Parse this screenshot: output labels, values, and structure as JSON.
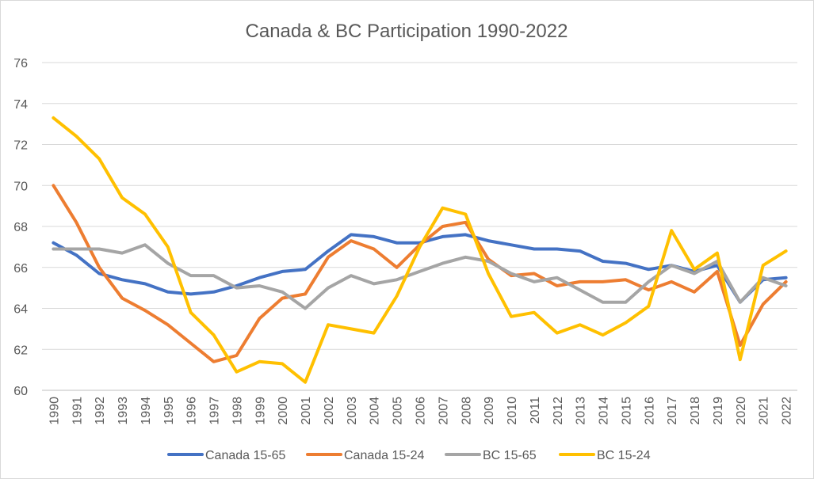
{
  "chart_data": {
    "type": "line",
    "title": "Canada & BC Participation 1990-2022",
    "x": [
      "1990",
      "1991",
      "1992",
      "1993",
      "1994",
      "1995",
      "1996",
      "1997",
      "1998",
      "1999",
      "2000",
      "2001",
      "2002",
      "2003",
      "2004",
      "2005",
      "2006",
      "2007",
      "2008",
      "2009",
      "2010",
      "2011",
      "2012",
      "2013",
      "2014",
      "2015",
      "2016",
      "2017",
      "2018",
      "2019",
      "2020",
      "2021",
      "2022"
    ],
    "ylim": [
      60,
      76
    ],
    "yticks": [
      "60",
      "62",
      "64",
      "66",
      "68",
      "70",
      "72",
      "74",
      "76"
    ],
    "grid": true,
    "legend": "bottom",
    "series": [
      {
        "name": "Canada 15-65",
        "color": "#4472C4",
        "values": [
          67.2,
          66.6,
          65.7,
          65.4,
          65.2,
          64.8,
          64.7,
          64.8,
          65.1,
          65.5,
          65.8,
          65.9,
          66.8,
          67.6,
          67.5,
          67.2,
          67.2,
          67.5,
          67.6,
          67.3,
          67.1,
          66.9,
          66.9,
          66.8,
          66.3,
          66.2,
          65.9,
          66.1,
          65.8,
          66.1,
          64.3,
          65.4,
          65.5
        ]
      },
      {
        "name": "Canada 15-24",
        "color": "#ED7D31",
        "values": [
          70.0,
          68.2,
          66.0,
          64.5,
          63.9,
          63.2,
          62.3,
          61.4,
          61.7,
          63.5,
          64.5,
          64.7,
          66.5,
          67.3,
          66.9,
          66.0,
          67.1,
          68.0,
          68.2,
          66.4,
          65.6,
          65.7,
          65.1,
          65.3,
          65.3,
          65.4,
          64.9,
          65.3,
          64.8,
          65.8,
          62.2,
          64.2,
          65.3
        ]
      },
      {
        "name": "BC 15-65",
        "color": "#A5A5A5",
        "values": [
          66.9,
          66.9,
          66.9,
          66.7,
          67.1,
          66.2,
          65.6,
          65.6,
          65.0,
          65.1,
          64.8,
          64.0,
          65.0,
          65.6,
          65.2,
          65.4,
          65.8,
          66.2,
          66.5,
          66.3,
          65.7,
          65.3,
          65.5,
          64.9,
          64.3,
          64.3,
          65.3,
          66.1,
          65.7,
          66.3,
          64.3,
          65.5,
          65.1
        ]
      },
      {
        "name": "BC 15-24",
        "color": "#FFC000",
        "values": [
          73.3,
          72.4,
          71.3,
          69.4,
          68.6,
          67.0,
          63.8,
          62.7,
          60.9,
          61.4,
          61.3,
          60.4,
          63.2,
          63.0,
          62.8,
          64.6,
          67.0,
          68.9,
          68.6,
          65.7,
          63.6,
          63.8,
          62.8,
          63.2,
          62.7,
          63.3,
          64.1,
          67.8,
          65.9,
          66.7,
          61.5,
          66.1,
          66.8
        ]
      }
    ]
  }
}
